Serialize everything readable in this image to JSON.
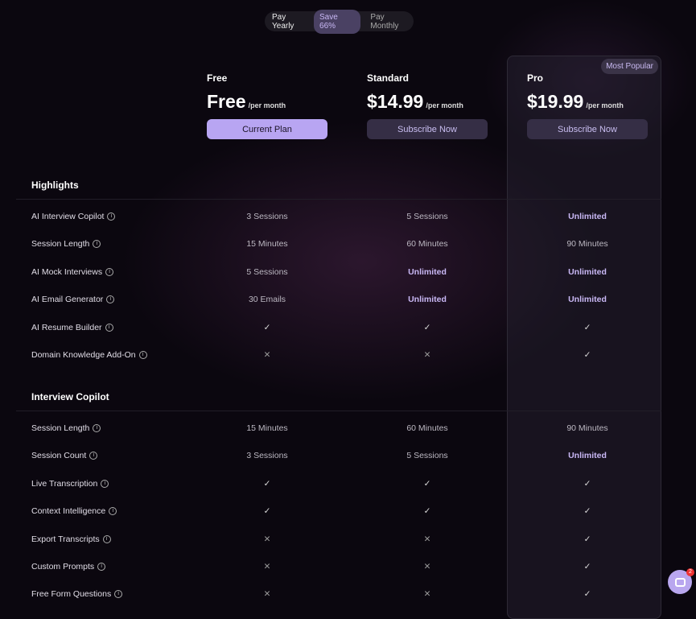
{
  "toggle": {
    "yearly": "Pay Yearly",
    "save": "Save 66%",
    "monthly": "Pay Monthly"
  },
  "plans": [
    {
      "name": "Free",
      "price": "Free",
      "per": "/per month",
      "button": "Current Plan"
    },
    {
      "name": "Standard",
      "price": "$14.99",
      "per": "/per month",
      "button": "Subscribe Now"
    },
    {
      "name": "Pro",
      "price": "$19.99",
      "per": "/per month",
      "button": "Subscribe Now",
      "badge": "Most Popular"
    }
  ],
  "sections": [
    {
      "title": "Highlights",
      "rows": [
        {
          "label": "AI Interview Copilot",
          "values": [
            "3 Sessions",
            "5 Sessions",
            "Unlimited"
          ]
        },
        {
          "label": "Session Length",
          "values": [
            "15 Minutes",
            "60 Minutes",
            "90 Minutes"
          ]
        },
        {
          "label": "AI Mock Interviews",
          "values": [
            "5 Sessions",
            "Unlimited",
            "Unlimited"
          ]
        },
        {
          "label": "AI Email Generator",
          "values": [
            "30 Emails",
            "Unlimited",
            "Unlimited"
          ]
        },
        {
          "label": "AI Resume Builder",
          "values": [
            "check",
            "check",
            "check"
          ]
        },
        {
          "label": "Domain Knowledge Add-On",
          "values": [
            "cross",
            "cross",
            "check"
          ]
        }
      ]
    },
    {
      "title": "Interview Copilot",
      "rows": [
        {
          "label": "Session Length",
          "values": [
            "15 Minutes",
            "60 Minutes",
            "90 Minutes"
          ]
        },
        {
          "label": "Session Count",
          "values": [
            "3 Sessions",
            "5 Sessions",
            "Unlimited"
          ]
        },
        {
          "label": "Live Transcription",
          "values": [
            "check",
            "check",
            "check"
          ]
        },
        {
          "label": "Context Intelligence",
          "values": [
            "check",
            "check",
            "check"
          ]
        },
        {
          "label": "Export Transcripts",
          "values": [
            "cross",
            "cross",
            "check"
          ]
        },
        {
          "label": "Custom Prompts",
          "values": [
            "cross",
            "cross",
            "check"
          ]
        },
        {
          "label": "Free Form Questions",
          "values": [
            "cross",
            "cross",
            "check"
          ]
        }
      ]
    }
  ],
  "chat": {
    "unread": "2"
  },
  "colors": {
    "accent": "#b8a5f2",
    "background": "#0b070f"
  }
}
